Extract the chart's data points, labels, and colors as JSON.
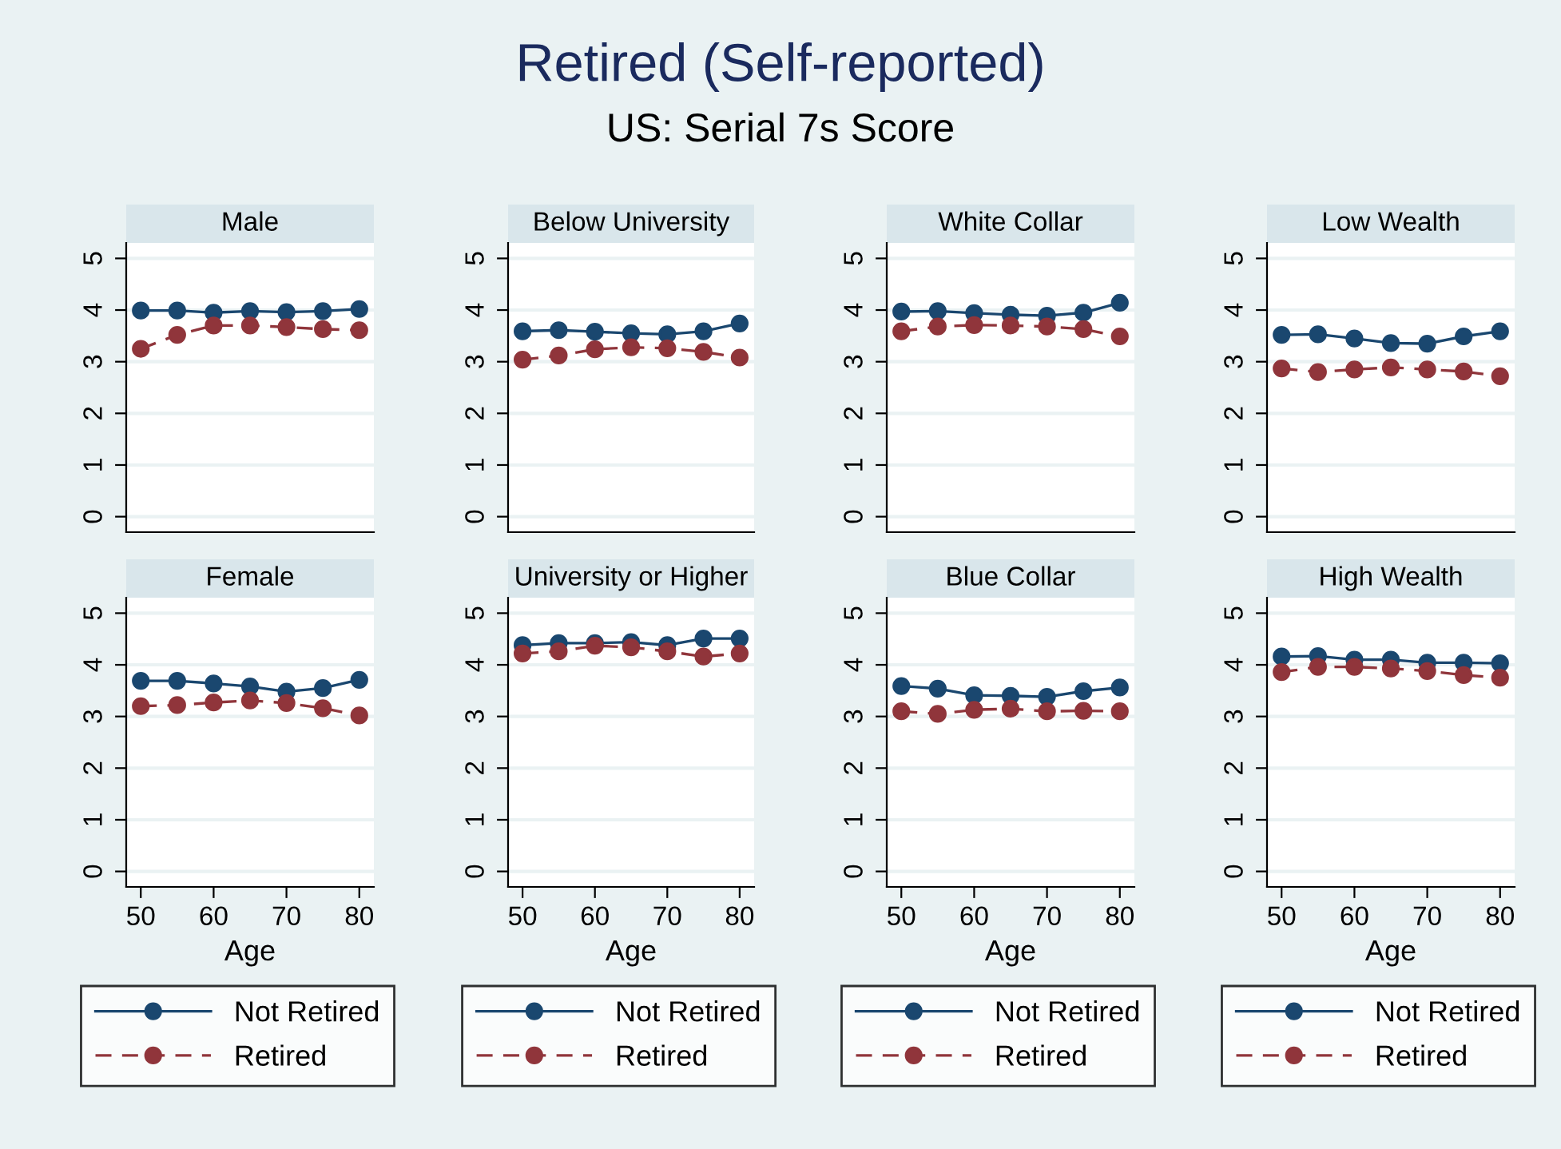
{
  "chart_data": [
    {
      "type": "line",
      "title": "Male",
      "annotations": [
        "Retired (Self-reported)",
        "US: Serial 7s Score"
      ],
      "x": [
        50,
        55,
        60,
        65,
        70,
        75,
        80
      ],
      "xlim": [
        48,
        82
      ],
      "xticks": [
        50,
        60,
        70,
        80
      ],
      "ylim": [
        -0.3,
        5.3
      ],
      "yticks": [
        0,
        1,
        2,
        3,
        4,
        5
      ],
      "grid": "y",
      "marker": "circle",
      "tick_labels": "y",
      "legend": "bottom",
      "series": [
        {
          "name": "Not Retired",
          "color": "#1a476f",
          "line_style": "solid",
          "values": [
            3.99,
            3.99,
            3.95,
            3.98,
            3.96,
            3.98,
            4.02
          ]
        },
        {
          "name": "Retired",
          "color": "#90353b",
          "line_style": "dashed",
          "values": [
            3.25,
            3.52,
            3.7,
            3.7,
            3.67,
            3.63,
            3.61
          ]
        }
      ]
    },
    {
      "type": "line",
      "title": "Below University",
      "x": [
        50,
        55,
        60,
        65,
        70,
        75,
        80
      ],
      "xlim": [
        48,
        82
      ],
      "xticks": [
        50,
        60,
        70,
        80
      ],
      "ylim": [
        -0.3,
        5.3
      ],
      "yticks": [
        0,
        1,
        2,
        3,
        4,
        5
      ],
      "grid": "y",
      "marker": "circle",
      "tick_labels": "y",
      "legend": "bottom",
      "series": [
        {
          "name": "Not Retired",
          "color": "#1a476f",
          "line_style": "solid",
          "values": [
            3.59,
            3.61,
            3.58,
            3.55,
            3.53,
            3.59,
            3.74
          ]
        },
        {
          "name": "Retired",
          "color": "#90353b",
          "line_style": "dashed",
          "values": [
            3.04,
            3.12,
            3.24,
            3.28,
            3.26,
            3.19,
            3.08
          ]
        }
      ]
    },
    {
      "type": "line",
      "title": "White Collar",
      "x": [
        50,
        55,
        60,
        65,
        70,
        75,
        80
      ],
      "xlim": [
        48,
        82
      ],
      "xticks": [
        50,
        60,
        70,
        80
      ],
      "ylim": [
        -0.3,
        5.3
      ],
      "yticks": [
        0,
        1,
        2,
        3,
        4,
        5
      ],
      "grid": "y",
      "marker": "circle",
      "tick_labels": "y",
      "legend": "bottom",
      "series": [
        {
          "name": "Not Retired",
          "color": "#1a476f",
          "line_style": "solid",
          "values": [
            3.97,
            3.98,
            3.94,
            3.91,
            3.89,
            3.95,
            4.14
          ]
        },
        {
          "name": "Retired",
          "color": "#90353b",
          "line_style": "dashed",
          "values": [
            3.59,
            3.68,
            3.71,
            3.7,
            3.68,
            3.63,
            3.49
          ]
        }
      ]
    },
    {
      "type": "line",
      "title": "Low Wealth",
      "x": [
        50,
        55,
        60,
        65,
        70,
        75,
        80
      ],
      "xlim": [
        48,
        82
      ],
      "xticks": [
        50,
        60,
        70,
        80
      ],
      "ylim": [
        -0.3,
        5.3
      ],
      "yticks": [
        0,
        1,
        2,
        3,
        4,
        5
      ],
      "grid": "y",
      "marker": "circle",
      "tick_labels": "y",
      "legend": "bottom",
      "series": [
        {
          "name": "Not Retired",
          "color": "#1a476f",
          "line_style": "solid",
          "values": [
            3.52,
            3.53,
            3.45,
            3.36,
            3.35,
            3.49,
            3.59
          ]
        },
        {
          "name": "Retired",
          "color": "#90353b",
          "line_style": "dashed",
          "values": [
            2.87,
            2.8,
            2.85,
            2.89,
            2.85,
            2.81,
            2.72
          ]
        }
      ]
    },
    {
      "type": "line",
      "title": "Female",
      "xlabel": "Age",
      "x": [
        50,
        55,
        60,
        65,
        70,
        75,
        80
      ],
      "xlim": [
        48,
        82
      ],
      "xticks": [
        50,
        60,
        70,
        80
      ],
      "ylim": [
        -0.3,
        5.3
      ],
      "yticks": [
        0,
        1,
        2,
        3,
        4,
        5
      ],
      "grid": "y",
      "marker": "circle",
      "series": [
        {
          "color": "#1a476f",
          "line_style": "solid",
          "values": [
            3.69,
            3.69,
            3.64,
            3.58,
            3.48,
            3.55,
            3.71
          ]
        },
        {
          "color": "#90353b",
          "line_style": "dashed",
          "values": [
            3.2,
            3.22,
            3.27,
            3.31,
            3.26,
            3.16,
            3.02
          ]
        }
      ]
    },
    {
      "type": "line",
      "title": "University or Higher",
      "xlabel": "Age",
      "x": [
        50,
        55,
        60,
        65,
        70,
        75,
        80
      ],
      "xlim": [
        48,
        82
      ],
      "xticks": [
        50,
        60,
        70,
        80
      ],
      "ylim": [
        -0.3,
        5.3
      ],
      "yticks": [
        0,
        1,
        2,
        3,
        4,
        5
      ],
      "grid": "y",
      "marker": "circle",
      "series": [
        {
          "color": "#1a476f",
          "line_style": "solid",
          "values": [
            4.38,
            4.42,
            4.42,
            4.44,
            4.38,
            4.51,
            4.51
          ]
        },
        {
          "color": "#90353b",
          "line_style": "dashed",
          "values": [
            4.22,
            4.26,
            4.37,
            4.34,
            4.26,
            4.16,
            4.22
          ]
        }
      ]
    },
    {
      "type": "line",
      "title": "Blue Collar",
      "xlabel": "Age",
      "x": [
        50,
        55,
        60,
        65,
        70,
        75,
        80
      ],
      "xlim": [
        48,
        82
      ],
      "xticks": [
        50,
        60,
        70,
        80
      ],
      "ylim": [
        -0.3,
        5.3
      ],
      "yticks": [
        0,
        1,
        2,
        3,
        4,
        5
      ],
      "grid": "y",
      "marker": "circle",
      "series": [
        {
          "color": "#1a476f",
          "line_style": "solid",
          "values": [
            3.59,
            3.54,
            3.41,
            3.4,
            3.38,
            3.49,
            3.56
          ]
        },
        {
          "color": "#90353b",
          "line_style": "dashed",
          "values": [
            3.1,
            3.05,
            3.13,
            3.15,
            3.1,
            3.11,
            3.1
          ]
        }
      ]
    },
    {
      "type": "line",
      "title": "High Wealth",
      "xlabel": "Age",
      "x": [
        50,
        55,
        60,
        65,
        70,
        75,
        80
      ],
      "xlim": [
        48,
        82
      ],
      "xticks": [
        50,
        60,
        70,
        80
      ],
      "ylim": [
        -0.3,
        5.3
      ],
      "yticks": [
        0,
        1,
        2,
        3,
        4,
        5
      ],
      "grid": "y",
      "marker": "circle",
      "series": [
        {
          "color": "#1a476f",
          "line_style": "solid",
          "values": [
            4.16,
            4.17,
            4.1,
            4.1,
            4.04,
            4.04,
            4.03
          ]
        },
        {
          "color": "#90353b",
          "line_style": "dashed",
          "values": [
            3.86,
            3.96,
            3.96,
            3.93,
            3.88,
            3.8,
            3.75
          ]
        }
      ]
    }
  ]
}
